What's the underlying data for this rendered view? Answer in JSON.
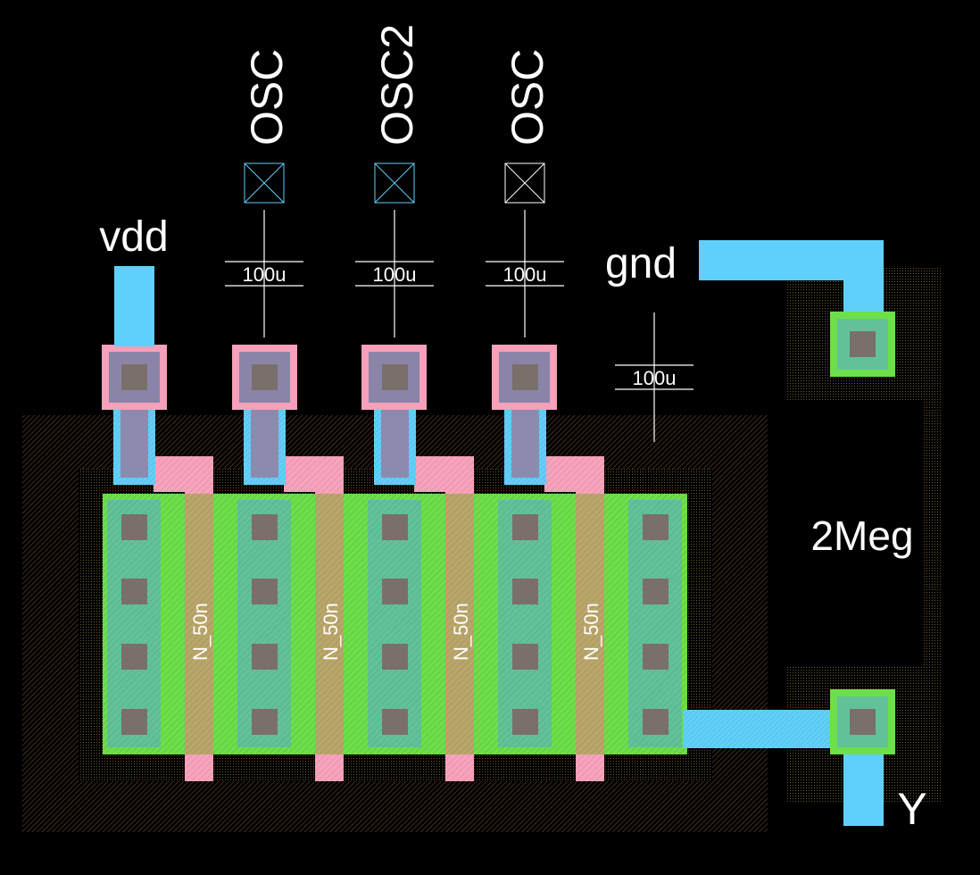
{
  "layout": {
    "pins": {
      "vdd": "vdd",
      "gnd": "gnd",
      "output": "Y"
    },
    "port_labels": [
      "OSC",
      "OSC2",
      "OSC"
    ],
    "dimension_labels": [
      "100u",
      "100u",
      "100u",
      "100u"
    ],
    "transistor_labels": [
      "N_50n",
      "N_50n",
      "N_50n",
      "N_50n"
    ],
    "resistor_label": "2Meg"
  },
  "colors": {
    "background": "#000000",
    "metal1": "#5fd0fb",
    "poly": "#f6a0ba",
    "active": "#6cdf4a",
    "contact": "#7a6f6b",
    "via_frame": "#8a85a8",
    "well_hatch": "#b57d4f",
    "text": "#ffffff"
  }
}
